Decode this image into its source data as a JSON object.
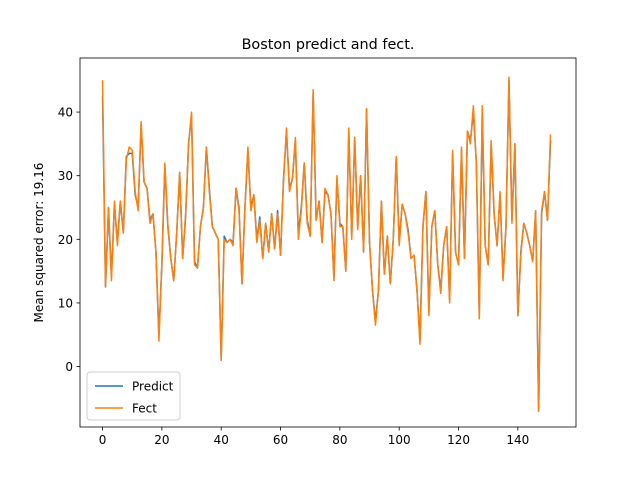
{
  "chart_data": {
    "type": "line",
    "title": "Boston predict and fect.",
    "xlabel": "",
    "ylabel": "Mean squared error: 19.16",
    "xlim": [
      -7.6,
      159.6
    ],
    "ylim": [
      -9.5,
      48.5
    ],
    "xticks": [
      0,
      20,
      40,
      60,
      80,
      100,
      120,
      140
    ],
    "yticks": [
      0,
      10,
      20,
      30,
      40
    ],
    "grid": false,
    "legend_position": "lower-left",
    "series": [
      {
        "name": "Predict",
        "color": "#1f77b4",
        "values": [
          42.5,
          12.5,
          25,
          14,
          25.5,
          19.5,
          26,
          21,
          33,
          33.5,
          33.5,
          27,
          25,
          38,
          29,
          28,
          23,
          24,
          18,
          5,
          16,
          31.5,
          22,
          17,
          13.5,
          21,
          30.5,
          17,
          23.5,
          35,
          39.5,
          16.5,
          15.5,
          22,
          25,
          34.5,
          28,
          22,
          21,
          20,
          1,
          20.5,
          19.5,
          20,
          19.5,
          28,
          25,
          13,
          25,
          34,
          25,
          27,
          20,
          23.5,
          17,
          22.5,
          18,
          24,
          18.5,
          24.5,
          17.5,
          29.5,
          37,
          28,
          29.5,
          35.5,
          21,
          25,
          32,
          23,
          20.5,
          43,
          23,
          26,
          19.5,
          27.5,
          27,
          24,
          14,
          29.5,
          22.5,
          22,
          15,
          37,
          20.5,
          36,
          22,
          30,
          18,
          40.5,
          19.5,
          12,
          7,
          12,
          26,
          14.5,
          20.5,
          13,
          20,
          33,
          19.5,
          25.5,
          24,
          21.5,
          17,
          17.5,
          12,
          4,
          22,
          27.5,
          8.5,
          22,
          24.5,
          16,
          12,
          19,
          22,
          10.5,
          33.5,
          18,
          16,
          34,
          17,
          37,
          35.5,
          40,
          32,
          8,
          40,
          19,
          16,
          35,
          24,
          19,
          27,
          14,
          22,
          45,
          23,
          35,
          8,
          18,
          22.5,
          21,
          19,
          16.5,
          24.5,
          -7,
          24,
          27.5,
          23,
          35.5
        ]
      },
      {
        "name": "Fect",
        "color": "#ff7f0e",
        "values": [
          45,
          12.5,
          25,
          13.5,
          26,
          19,
          26,
          21,
          32.5,
          34.5,
          34,
          27.5,
          24.5,
          38.5,
          29,
          28,
          22.5,
          24,
          18,
          4,
          16.5,
          32,
          22.5,
          17,
          13.5,
          21,
          30.5,
          17,
          24,
          35,
          40,
          16,
          15.5,
          22,
          25,
          34.5,
          27.5,
          22,
          21,
          20,
          1,
          20,
          19.5,
          20,
          19,
          28,
          24.5,
          13,
          25,
          34.5,
          24.5,
          27,
          19.5,
          23,
          17,
          22.5,
          18,
          24,
          18.5,
          24,
          17.5,
          29,
          37.5,
          27.5,
          29.5,
          36,
          20,
          24.5,
          32,
          22.5,
          20.5,
          43.5,
          23,
          26,
          19.5,
          28,
          27,
          24,
          13.5,
          30,
          22,
          22,
          15,
          37.5,
          20,
          36,
          21.5,
          30,
          18,
          40.5,
          19.5,
          12,
          6.5,
          12,
          26,
          14.5,
          20.5,
          13,
          20,
          33,
          19,
          25.5,
          24,
          21,
          17,
          17.5,
          12,
          3.5,
          22,
          27.5,
          8,
          22,
          24.5,
          16,
          11.5,
          19,
          22,
          10,
          34,
          18,
          16,
          34.5,
          17,
          37,
          35,
          41,
          32,
          7.5,
          41,
          19,
          16,
          35.5,
          24,
          19,
          27.5,
          13.5,
          22,
          45.5,
          22.5,
          35,
          8,
          17.5,
          22.5,
          21,
          19,
          16.5,
          24.5,
          -7,
          24.5,
          27.5,
          23,
          36.5
        ]
      }
    ]
  }
}
